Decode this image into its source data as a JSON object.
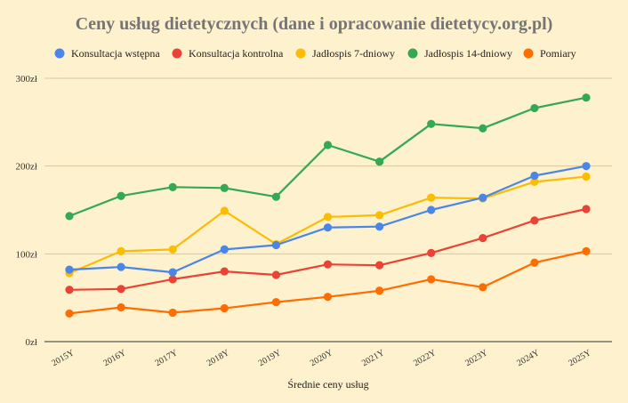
{
  "chart_data": {
    "type": "line",
    "title": "Ceny usług dietetycznych (dane i opracowanie dietetycy.org.pl)",
    "xlabel": "Średnie ceny usług",
    "ylabel": "",
    "categories": [
      "2015Y",
      "2016Y",
      "2017Y",
      "2018Y",
      "2019Y",
      "2020Y",
      "2021Y",
      "2022Y",
      "2023Y",
      "2024Y",
      "2025Y"
    ],
    "ylim": [
      0,
      300
    ],
    "yticks": [
      0,
      100,
      200,
      300
    ],
    "ytick_labels": [
      "0zł",
      "100zł",
      "200zł",
      "300zł"
    ],
    "grid": true,
    "legend_position": "top",
    "series": [
      {
        "name": "Konsultacja wstępna",
        "color": "#4a86e8",
        "values": [
          82,
          85,
          79,
          105,
          110,
          130,
          131,
          150,
          164,
          189,
          200
        ]
      },
      {
        "name": "Konsultacja kontrolna",
        "color": "#ea4335",
        "values": [
          59,
          60,
          71,
          80,
          76,
          88,
          87,
          101,
          118,
          138,
          151
        ]
      },
      {
        "name": "Jadłospis 7-dniowy",
        "color": "#fbbc04",
        "values": [
          78,
          103,
          105,
          149,
          111,
          142,
          144,
          164,
          163,
          182,
          188
        ]
      },
      {
        "name": "Jadłospis 14-dniowy",
        "color": "#34a853",
        "values": [
          143,
          166,
          176,
          175,
          165,
          224,
          205,
          248,
          243,
          266,
          278
        ]
      },
      {
        "name": "Pomiary",
        "color": "#ff6d01",
        "values": [
          32,
          39,
          33,
          38,
          45,
          51,
          58,
          71,
          62,
          90,
          103
        ]
      }
    ]
  }
}
